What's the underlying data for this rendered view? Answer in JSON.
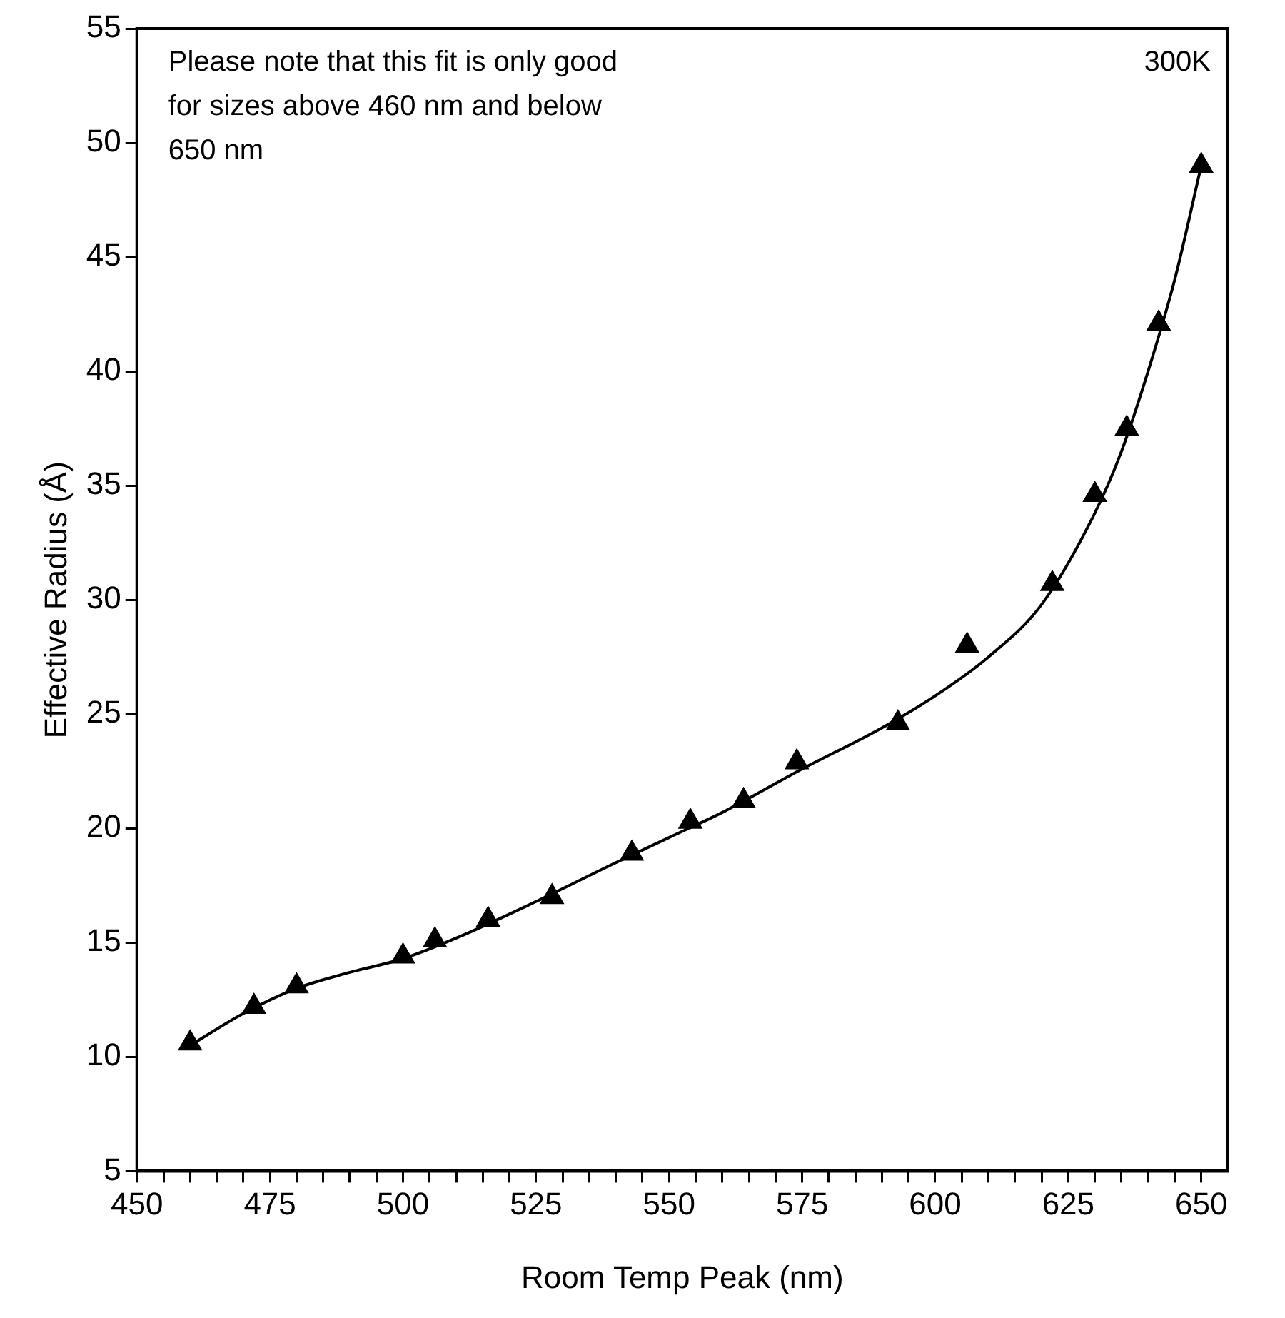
{
  "chart_data": {
    "type": "scatter",
    "xlabel": "Room Temp Peak (nm)",
    "ylabel": "Effective Radius (Å)",
    "xlim": [
      450,
      655
    ],
    "ylim": [
      5,
      55
    ],
    "xticks": [
      450,
      {
        "value": 455,
        "label": null
      },
      {
        "value": 460,
        "label": null
      },
      {
        "value": 465,
        "label": null
      },
      {
        "value": 470,
        "label": null
      },
      475,
      {
        "value": 480,
        "label": null
      },
      {
        "value": 485,
        "label": null
      },
      {
        "value": 490,
        "label": null
      },
      {
        "value": 495,
        "label": null
      },
      500,
      {
        "value": 505,
        "label": null
      },
      {
        "value": 510,
        "label": null
      },
      {
        "value": 515,
        "label": null
      },
      {
        "value": 520,
        "label": null
      },
      525,
      {
        "value": 530,
        "label": null
      },
      {
        "value": 535,
        "label": null
      },
      {
        "value": 540,
        "label": null
      },
      {
        "value": 545,
        "label": null
      },
      550,
      {
        "value": 555,
        "label": null
      },
      {
        "value": 560,
        "label": null
      },
      {
        "value": 565,
        "label": null
      },
      {
        "value": 570,
        "label": null
      },
      575,
      {
        "value": 580,
        "label": null
      },
      {
        "value": 585,
        "label": null
      },
      {
        "value": 590,
        "label": null
      },
      {
        "value": 595,
        "label": null
      },
      600,
      {
        "value": 605,
        "label": null
      },
      {
        "value": 610,
        "label": null
      },
      {
        "value": 615,
        "label": null
      },
      {
        "value": 620,
        "label": null
      },
      625,
      {
        "value": 630,
        "label": null
      },
      {
        "value": 635,
        "label": null
      },
      {
        "value": 640,
        "label": null
      },
      {
        "value": 645,
        "label": null
      },
      650
    ],
    "yticks": [
      5,
      10,
      15,
      20,
      25,
      30,
      35,
      40,
      45,
      50,
      55
    ],
    "grid": false,
    "legend": false,
    "marker": "triangle",
    "annotations": [
      "Please note that this fit is only good for sizes above 460 nm and below 650 nm",
      "300K"
    ],
    "series": [
      {
        "type": "line",
        "color": "#000000",
        "marker": "none",
        "line_style": "solid",
        "x": [
          460,
          470,
          480,
          490,
          500,
          510,
          525,
          540,
          550,
          560,
          575,
          590,
          600,
          610,
          620,
          630,
          635,
          640,
          645,
          650
        ],
        "values": [
          10.5,
          11.9,
          13.0,
          13.7,
          14.3,
          15.2,
          16.8,
          18.5,
          19.6,
          20.7,
          22.6,
          24.4,
          25.8,
          27.5,
          29.8,
          33.8,
          36.5,
          40.0,
          44.0,
          49.0
        ]
      },
      {
        "type": "scatter",
        "color": "#000000",
        "x": [
          460,
          472,
          480,
          500,
          506,
          516,
          528,
          543,
          554,
          564,
          574,
          593,
          606,
          622,
          630,
          636,
          642,
          650
        ],
        "values": [
          10.6,
          12.2,
          13.1,
          14.4,
          15.1,
          16.0,
          17.0,
          18.9,
          20.3,
          21.2,
          22.9,
          24.6,
          28.0,
          30.7,
          34.6,
          37.5,
          42.1,
          49.0
        ]
      }
    ]
  }
}
